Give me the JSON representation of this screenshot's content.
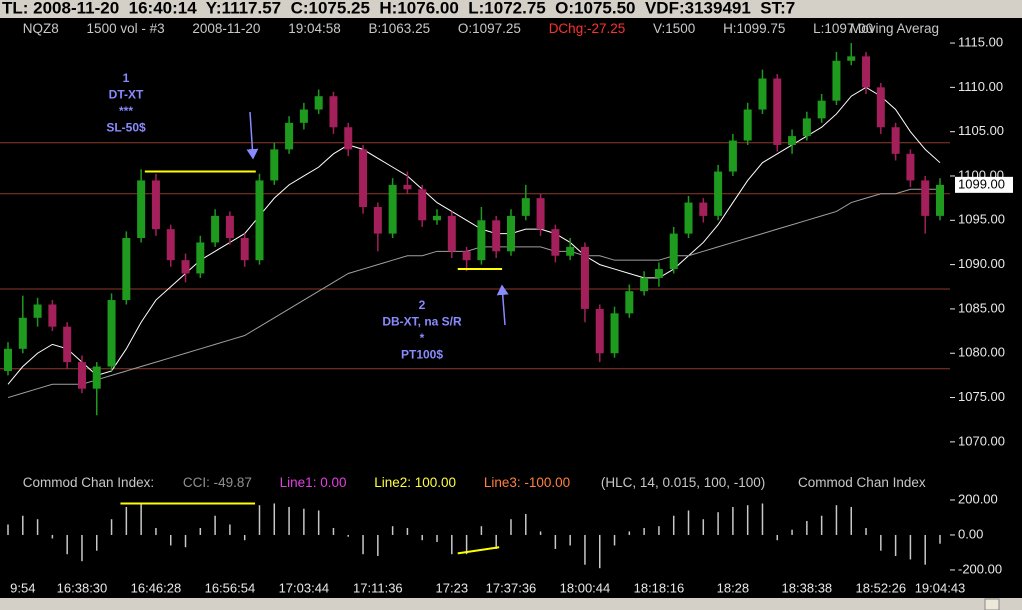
{
  "header": {
    "text": "TL: 2008-11-20  16:40:14  Y:1117.57  C:1075.25  H:1076.00  L:1072.75  O:1075.50  VDF:3139491  ST:7"
  },
  "chart_data": [
    {
      "type": "candlestick",
      "info": [
        "NQZ8",
        "1500 vol - #3",
        "2008-11-20",
        "19:04:58",
        "B:1063.25",
        "O:1097.25",
        "DChg:-27.25",
        "V:1500",
        "H:1099.75",
        "L:1097.00",
        "Moving Averag"
      ],
      "categories": [
        null,
        "9:54",
        null,
        null,
        null,
        "16:38:30",
        null,
        null,
        null,
        null,
        "16:46:28",
        null,
        null,
        null,
        null,
        "16:56:54",
        null,
        null,
        null,
        null,
        "17:03:44",
        null,
        null,
        null,
        null,
        "17:11:36",
        null,
        null,
        null,
        null,
        "17:23",
        null,
        null,
        null,
        "17:37:36",
        null,
        null,
        null,
        null,
        "18:00:44",
        null,
        null,
        null,
        null,
        "18:18:16",
        null,
        null,
        null,
        null,
        "18:28",
        null,
        null,
        null,
        null,
        "18:38:38",
        null,
        null,
        null,
        null,
        "18:52:26",
        null,
        null,
        null,
        "19:04:43"
      ],
      "candles": [
        [
          1078,
          1081.25,
          1077.5,
          1080.5
        ],
        [
          1080.5,
          1086.5,
          1080,
          1084
        ],
        [
          1084,
          1086.25,
          1083,
          1085.5
        ],
        [
          1085.5,
          1086,
          1082.5,
          1083
        ],
        [
          1083,
          1083.5,
          1078.25,
          1079
        ],
        [
          1079,
          1079.75,
          1075.5,
          1076
        ],
        [
          1076,
          1079,
          1073,
          1078.5
        ],
        [
          1078.5,
          1086.75,
          1078,
          1086
        ],
        [
          1086,
          1093.75,
          1085.5,
          1093
        ],
        [
          1093,
          1100.75,
          1092.5,
          1099.5
        ],
        [
          1099.5,
          1100.25,
          1093.25,
          1094
        ],
        [
          1094,
          1094.5,
          1089.75,
          1090.5
        ],
        [
          1090.5,
          1091.25,
          1088,
          1089
        ],
        [
          1089,
          1093.25,
          1088.5,
          1092.5
        ],
        [
          1092.5,
          1096.25,
          1092,
          1095.5
        ],
        [
          1095.5,
          1096,
          1092.25,
          1093
        ],
        [
          1093,
          1093.5,
          1089.75,
          1090.5
        ],
        [
          1090.5,
          1100.25,
          1090,
          1099.5
        ],
        [
          1099.5,
          1103.75,
          1099,
          1103
        ],
        [
          1103,
          1106.75,
          1102.5,
          1106
        ],
        [
          1106,
          1108.25,
          1105.25,
          1107.5
        ],
        [
          1107.5,
          1109.75,
          1107,
          1109
        ],
        [
          1109,
          1109.5,
          1104.75,
          1105.5
        ],
        [
          1105.5,
          1106,
          1102.25,
          1103
        ],
        [
          1103,
          1103.5,
          1095.75,
          1096.5
        ],
        [
          1096.5,
          1097,
          1091.5,
          1093.5
        ],
        [
          1093.5,
          1099.75,
          1093,
          1099
        ],
        [
          1099,
          1100.5,
          1098,
          1098.5
        ],
        [
          1098.5,
          1099,
          1094.25,
          1095
        ],
        [
          1095,
          1096.25,
          1094.5,
          1095.5
        ],
        [
          1095.5,
          1096,
          1090.75,
          1091.5
        ],
        [
          1091.5,
          1092,
          1089.25,
          1090.5
        ],
        [
          1090.5,
          1096.5,
          1090,
          1095
        ],
        [
          1095,
          1095.5,
          1090.75,
          1091.5
        ],
        [
          1091.5,
          1096.25,
          1091,
          1095.5
        ],
        [
          1095.5,
          1099,
          1095,
          1097.5
        ],
        [
          1097.5,
          1098,
          1093.25,
          1094
        ],
        [
          1094,
          1094.5,
          1090.25,
          1091
        ],
        [
          1091,
          1093,
          1090.5,
          1092
        ],
        [
          1092,
          1092.5,
          1083.5,
          1085
        ],
        [
          1085,
          1085.5,
          1079,
          1080
        ],
        [
          1080,
          1085.25,
          1079.5,
          1084.5
        ],
        [
          1084.5,
          1087.75,
          1084,
          1087
        ],
        [
          1087,
          1089.25,
          1086.5,
          1088.5
        ],
        [
          1088.5,
          1090.25,
          1087.5,
          1089.5
        ],
        [
          1089.5,
          1094.25,
          1089,
          1093.5
        ],
        [
          1093.5,
          1097.75,
          1093,
          1097
        ],
        [
          1097,
          1097.5,
          1094.75,
          1095.5
        ],
        [
          1095.5,
          1101.25,
          1095,
          1100.5
        ],
        [
          1100.5,
          1104.75,
          1100,
          1104
        ],
        [
          1104,
          1108.25,
          1103.5,
          1107.5
        ],
        [
          1107.5,
          1112,
          1107,
          1111
        ],
        [
          1111,
          1111.5,
          1102.75,
          1103.5
        ],
        [
          1103.5,
          1105.25,
          1102.5,
          1104.5
        ],
        [
          1104.5,
          1107.25,
          1104,
          1106.5
        ],
        [
          1106.5,
          1109.25,
          1106,
          1108.5
        ],
        [
          1108.5,
          1114,
          1108,
          1113
        ],
        [
          1113,
          1115,
          1112.5,
          1113.5
        ],
        [
          1113.5,
          1114,
          1109.25,
          1110
        ],
        [
          1110,
          1110.5,
          1104.75,
          1105.5
        ],
        [
          1105.5,
          1106,
          1101.75,
          1102.5
        ],
        [
          1102.5,
          1103,
          1098.75,
          1099.5
        ],
        [
          1099.5,
          1100,
          1093.5,
          1095.5
        ],
        [
          1095.5,
          1099.75,
          1095,
          1099
        ]
      ],
      "up_color": "#1e9b1e",
      "down_color": "#a3205a",
      "series": [
        {
          "color": "#ffffff",
          "values": [
            1076.5,
            1078.5,
            1080,
            1081,
            1080.5,
            1079,
            1077.5,
            1078,
            1080.5,
            1083.5,
            1086,
            1087.5,
            1089,
            1090.5,
            1091.5,
            1092.5,
            1093.5,
            1095.5,
            1097.5,
            1099,
            1100,
            1101,
            1102.5,
            1103.5,
            1103,
            1102,
            1101,
            1100,
            1098.5,
            1097,
            1096,
            1095,
            1094,
            1093.5,
            1093.5,
            1094,
            1094,
            1093.5,
            1092.5,
            1091,
            1090,
            1089.5,
            1089,
            1088.5,
            1088.5,
            1089.5,
            1091,
            1092.5,
            1094.5,
            1097,
            1099.5,
            1101.5,
            1102.5,
            1103.5,
            1104.5,
            1105.5,
            1107,
            1109,
            1110,
            1109,
            1107.5,
            1105,
            1103,
            1101.5
          ]
        },
        {
          "color": "#a0a0a0",
          "values": [
            1075,
            1075.5,
            1076,
            1076.5,
            1076.5,
            1076.5,
            1077,
            1077.5,
            1078,
            1078.5,
            1079,
            1079.5,
            1080,
            1080.5,
            1081,
            1081.5,
            1082,
            1083,
            1084,
            1085,
            1086,
            1087,
            1088,
            1089,
            1089.5,
            1090,
            1090.5,
            1091,
            1091,
            1091.5,
            1091.5,
            1091.5,
            1092,
            1092,
            1092,
            1092,
            1092,
            1091.5,
            1091.5,
            1091,
            1091,
            1090.5,
            1090.5,
            1090.5,
            1090.5,
            1091,
            1091,
            1091.5,
            1092,
            1092.5,
            1093,
            1093.5,
            1094,
            1094.5,
            1095,
            1095.5,
            1096,
            1097,
            1097.5,
            1098,
            1098,
            1098.5,
            1098.5,
            1098.5
          ]
        }
      ],
      "levels": [
        1103.75,
        1098,
        1087.25,
        1078.25
      ],
      "level_color": "#8b3a2a",
      "trendlines": [
        {
          "x": [
            9.25,
            16.75
          ],
          "y": [
            1100.5,
            1100.5
          ]
        },
        {
          "x": [
            30.4,
            33.4
          ],
          "y": [
            1089.5,
            1089.5
          ]
        }
      ],
      "trendline_color": "#ffff00",
      "annotations": [
        {
          "lines": [
            "1",
            "DT-XT",
            "***",
            "SL-50$"
          ]
        },
        {
          "lines": [
            "2",
            "DB-XT, na S/R",
            "*",
            "PT100$"
          ]
        }
      ],
      "ylim": [
        1066.6,
        1117.6
      ],
      "yticks": [
        {
          "value": 1070,
          "label": "1070.00"
        },
        {
          "value": 1075,
          "label": "1075.00"
        },
        {
          "value": 1080,
          "label": "1080.00"
        },
        {
          "value": 1085,
          "label": "1085.00"
        },
        {
          "value": 1090,
          "label": "1090.00"
        },
        {
          "value": 1095,
          "label": "1095.00"
        },
        {
          "value": 1100,
          "label": "1100.00"
        },
        {
          "value": 1105,
          "label": "1105.00"
        },
        {
          "value": 1110,
          "label": "1110.00"
        },
        {
          "value": 1115,
          "label": "1115.00"
        }
      ],
      "last_label": {
        "value": 1099,
        "label": "1099.00"
      }
    },
    {
      "type": "histogram-bars",
      "info": [
        "Commod Chan Index:",
        "CCI: -49.87",
        "Line1: 0.00",
        "Line2: 100.00",
        "Line3: -100.00",
        "(HLC, 14, 0.015, 100, -100)",
        "Commod Chan Index"
      ],
      "color": "#c8c8c8",
      "values": [
        60,
        110,
        90,
        -20,
        -110,
        -150,
        -90,
        90,
        160,
        175,
        40,
        -60,
        -70,
        40,
        110,
        60,
        -30,
        170,
        180,
        160,
        150,
        140,
        40,
        -10,
        -110,
        -120,
        50,
        40,
        -30,
        -40,
        -110,
        -110,
        50,
        -80,
        90,
        120,
        20,
        -80,
        -60,
        -170,
        -190,
        -60,
        20,
        40,
        50,
        110,
        140,
        90,
        130,
        160,
        170,
        180,
        -30,
        30,
        80,
        110,
        170,
        160,
        40,
        -90,
        -120,
        -140,
        -170,
        -49.87
      ],
      "trendlines": [
        {
          "x": [
            7.6,
            16.7
          ],
          "y": [
            180,
            180
          ]
        },
        {
          "x": [
            30.4,
            33.2
          ],
          "y": [
            -105,
            -70
          ]
        }
      ],
      "trendline_color": "#ffff00",
      "ylim": [
        -246,
        257
      ],
      "yticks": [
        {
          "value": -200,
          "label": "-200.00"
        },
        {
          "value": 0,
          "label": "0.00"
        },
        {
          "value": 200,
          "label": "200.00"
        }
      ]
    }
  ]
}
